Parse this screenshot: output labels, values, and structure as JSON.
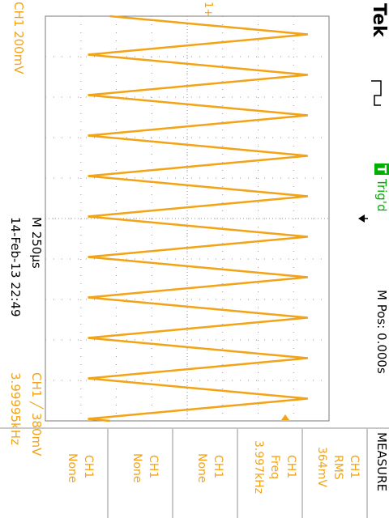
{
  "brand": "Tek",
  "trigger_state": {
    "badge": "T",
    "label": "Trig'd"
  },
  "channel_scale": "CH1  200mV",
  "timebase": "M 250µs",
  "datetime": "14-Feb-13 22:49",
  "trigger_setting": "CH1 ╱ 380mV",
  "frequency_readout": "3.99995kHz",
  "position_readout": "M Pos: 0.000s",
  "trigger_marker_label": "1+",
  "menu": {
    "title": "MEASURE",
    "items": [
      {
        "source": "CH1",
        "type": "RMS",
        "value": "364mV"
      },
      {
        "source": "CH1",
        "type": "Freq",
        "value": "3.997kHz"
      },
      {
        "source": "CH1",
        "type": "None",
        "value": ""
      },
      {
        "source": "CH1",
        "type": "None",
        "value": ""
      },
      {
        "source": "CH1",
        "type": "None",
        "value": ""
      }
    ]
  },
  "colors": {
    "trace": "#f2a316",
    "grid": "#7a7a7a",
    "trig_badge_bg": "#00b000",
    "text_dark": "#000000"
  },
  "waveform": {
    "type": "triangle",
    "cycles": 10,
    "amplitude_divs": 6.2,
    "offset_divs": 0.3
  }
}
